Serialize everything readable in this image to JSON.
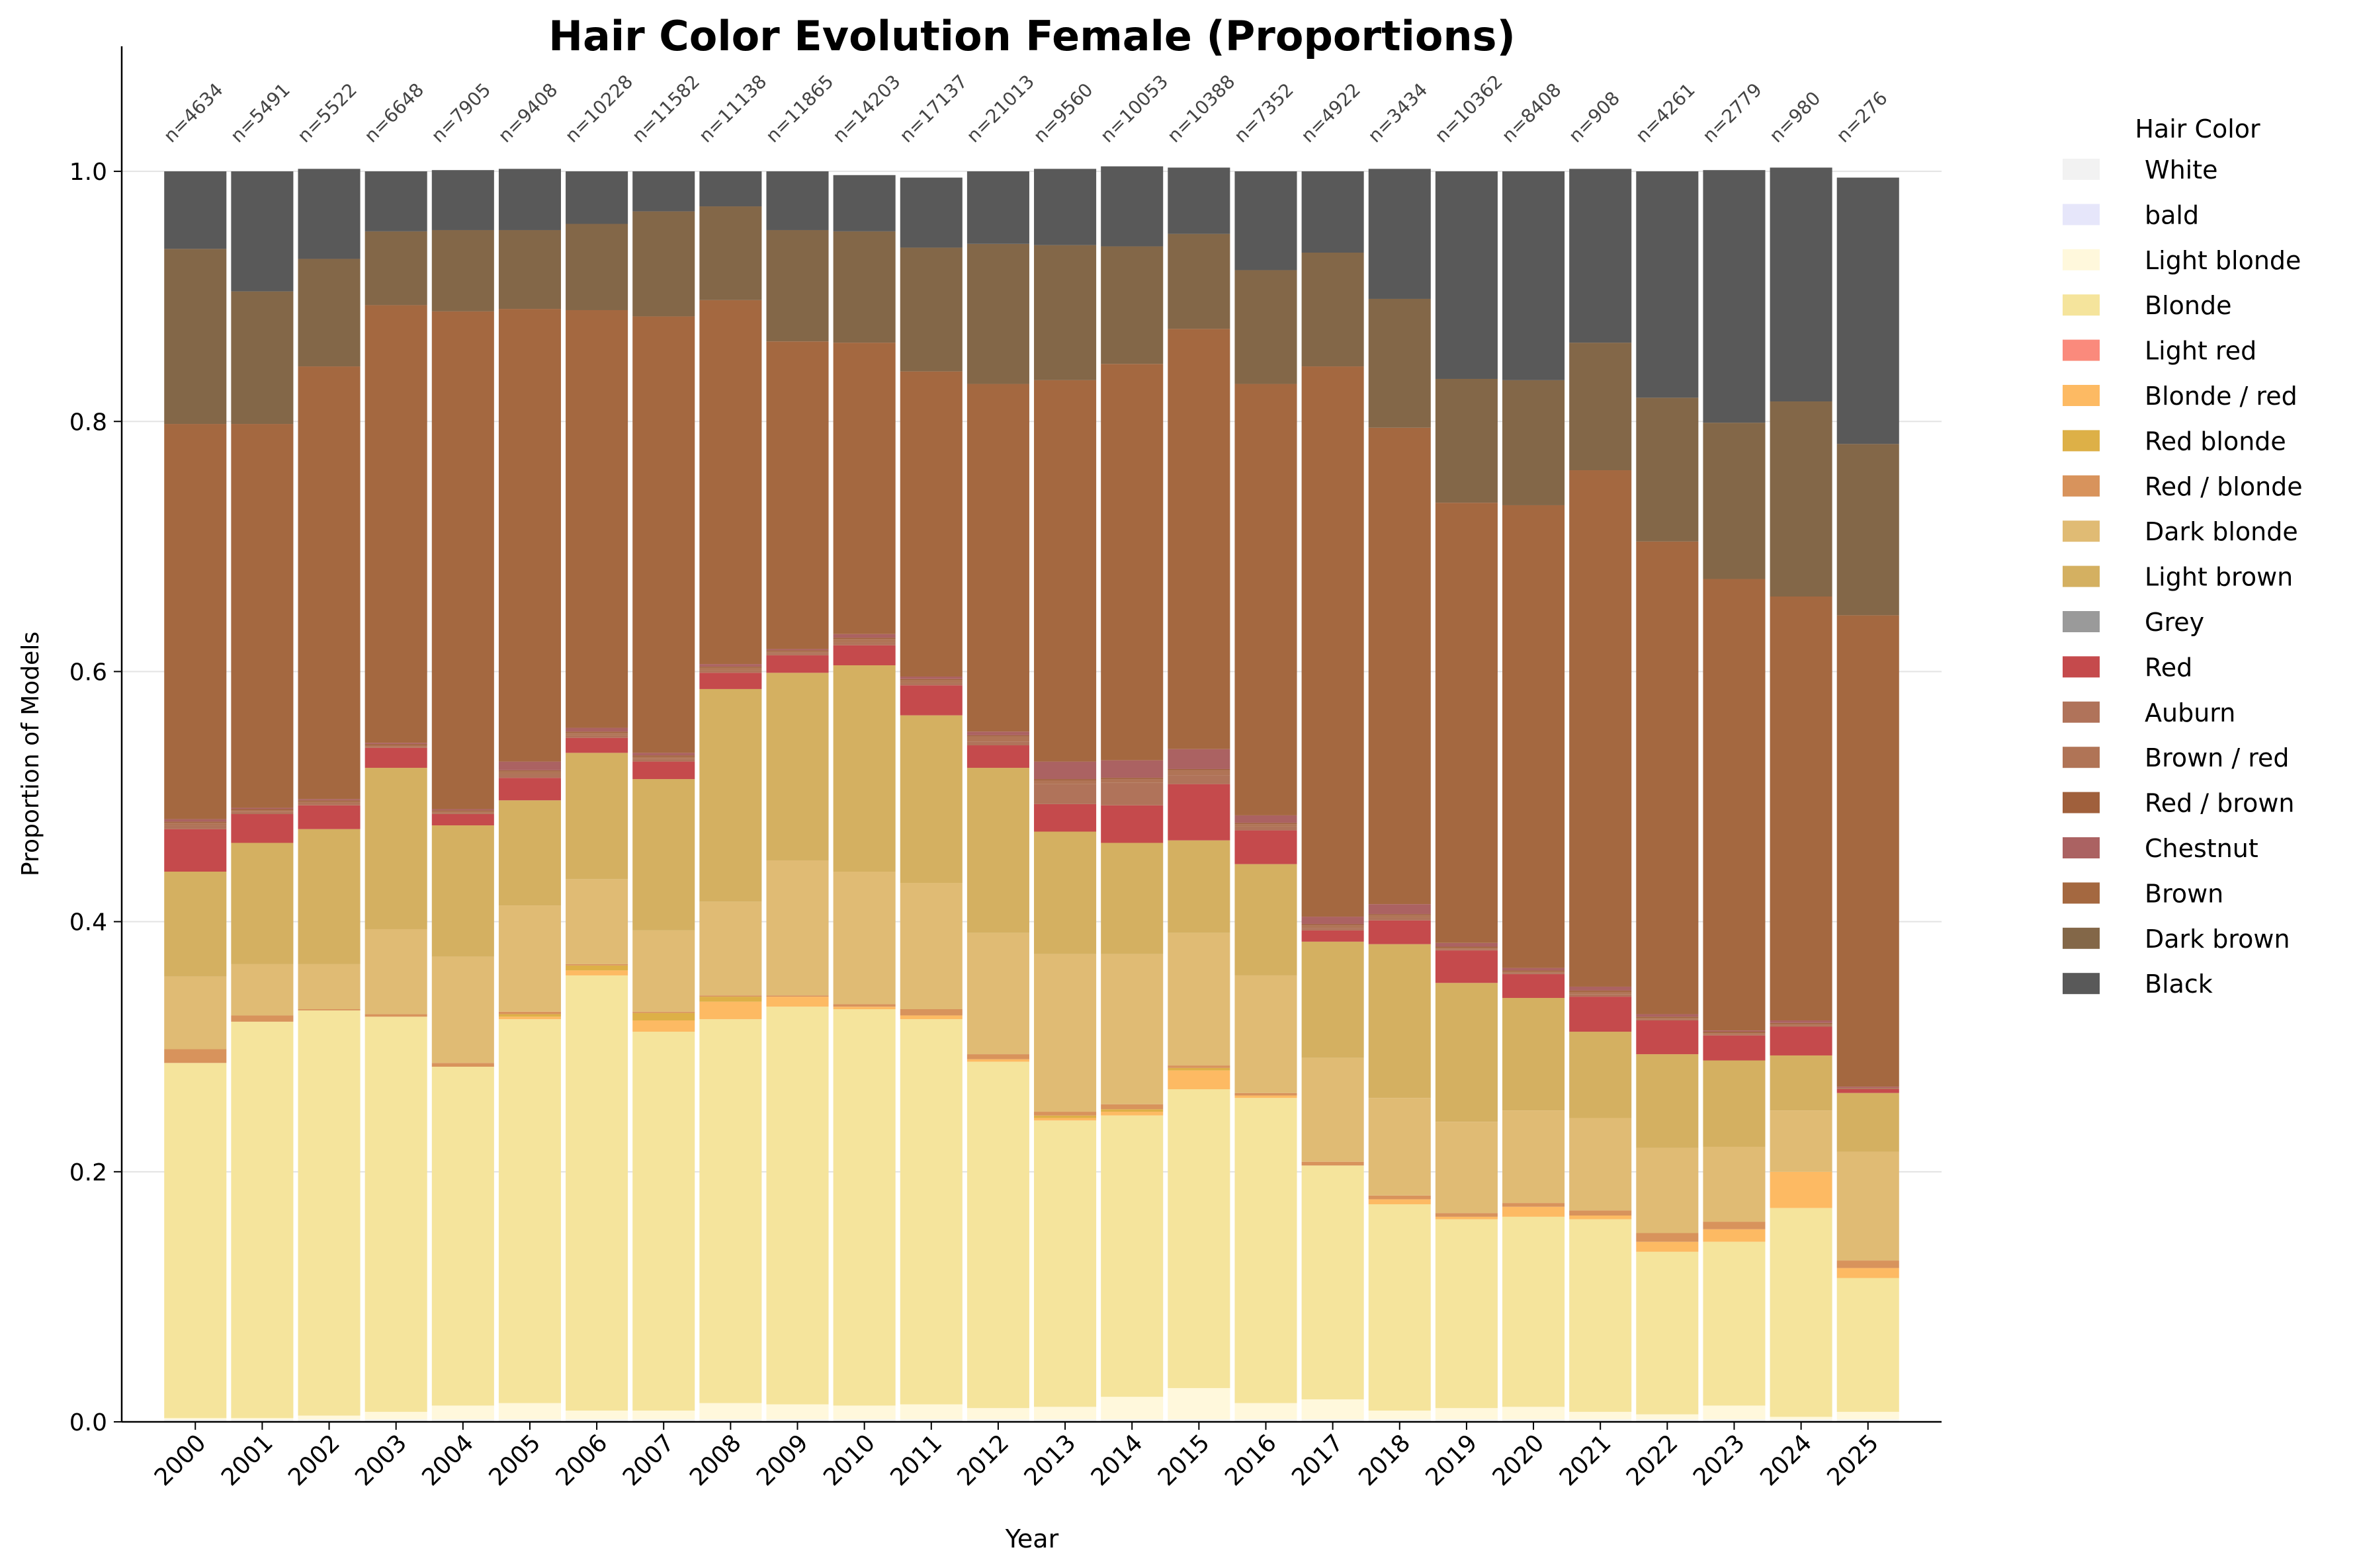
{
  "chart_data": {
    "type": "bar",
    "stacked": true,
    "title": "Hair Color Evolution Female (Proportions)",
    "xlabel": "Year",
    "ylabel": "Proportion of Models",
    "ylim": [
      0,
      1.1
    ],
    "yticks": [
      "0.0",
      "0.2",
      "0.4",
      "0.6",
      "0.8",
      "1.0"
    ],
    "grid": "horizontal",
    "legend_title": "Hair Color",
    "legend_position": "outside right",
    "categories": [
      "2000",
      "2001",
      "2002",
      "2003",
      "2004",
      "2005",
      "2006",
      "2007",
      "2008",
      "2009",
      "2010",
      "2011",
      "2012",
      "2013",
      "2014",
      "2015",
      "2016",
      "2017",
      "2018",
      "2019",
      "2020",
      "2021",
      "2022",
      "2023",
      "2024",
      "2025"
    ],
    "counts": [
      "n=4634",
      "n=5491",
      "n=5522",
      "n=6648",
      "n=7905",
      "n=9408",
      "n=10228",
      "n=11582",
      "n=11138",
      "n=11865",
      "n=14203",
      "n=17137",
      "n=21013",
      "n=9560",
      "n=10053",
      "n=10388",
      "n=7352",
      "n=4922",
      "n=3434",
      "n=10362",
      "n=8408",
      "n=908",
      "n=4261",
      "n=2779",
      "n=980",
      "n=276"
    ],
    "series": [
      {
        "name": "White",
        "color": "#f2f2f2",
        "values": [
          0.002,
          0.002,
          0.002,
          0.002,
          0.002,
          0.002,
          0.002,
          0.002,
          0.002,
          0.002,
          0.002,
          0.002,
          0.002,
          0.002,
          0.002,
          0.002,
          0.002,
          0.002,
          0.002,
          0.002,
          0.002,
          0.002,
          0.002,
          0.002,
          0.002,
          0.002
        ]
      },
      {
        "name": "bald",
        "color": "#e6e6fa",
        "values": [
          0,
          0,
          0,
          0,
          0,
          0,
          0,
          0,
          0,
          0,
          0,
          0,
          0,
          0,
          0,
          0,
          0,
          0,
          0,
          0,
          0,
          0,
          0,
          0,
          0,
          0
        ]
      },
      {
        "name": "Light blonde",
        "color": "#fff8dc",
        "values": [
          0.001,
          0.001,
          0.003,
          0.006,
          0.011,
          0.013,
          0.007,
          0.007,
          0.013,
          0.012,
          0.011,
          0.012,
          0.009,
          0.01,
          0.018,
          0.025,
          0.013,
          0.016,
          0.007,
          0.009,
          0.01,
          0.006,
          0.004,
          0.011,
          0.002,
          0.006
        ]
      },
      {
        "name": "Blonde",
        "color": "#f5e49c",
        "values": [
          0.284,
          0.317,
          0.324,
          0.316,
          0.271,
          0.307,
          0.348,
          0.303,
          0.307,
          0.318,
          0.317,
          0.308,
          0.277,
          0.229,
          0.225,
          0.239,
          0.244,
          0.187,
          0.165,
          0.151,
          0.152,
          0.154,
          0.13,
          0.131,
          0.167,
          0.107
        ]
      },
      {
        "name": "Light red",
        "color": "#fa8a7c",
        "values": [
          0,
          0,
          0,
          0,
          0,
          0,
          0,
          0,
          0,
          0,
          0,
          0,
          0,
          0,
          0,
          0,
          0,
          0,
          0,
          0,
          0,
          0,
          0,
          0,
          0,
          0
        ]
      },
      {
        "name": "Blonde / red",
        "color": "#fdba63",
        "values": [
          0,
          0,
          0,
          0,
          0,
          0.002,
          0.004,
          0.009,
          0.014,
          0.008,
          0.002,
          0.003,
          0.002,
          0.002,
          0.003,
          0.015,
          0.002,
          0,
          0.004,
          0.002,
          0.008,
          0.003,
          0.008,
          0.01,
          0.029,
          0.008
        ]
      },
      {
        "name": "Red blonde",
        "color": "#ddb047",
        "values": [
          0,
          0,
          0,
          0,
          0,
          0.002,
          0.004,
          0.006,
          0.004,
          0,
          0,
          0,
          0,
          0.002,
          0.002,
          0.002,
          0,
          0,
          0,
          0,
          0,
          0,
          0,
          0,
          0,
          0
        ]
      },
      {
        "name": "Red / blonde",
        "color": "#d8935c",
        "values": [
          0.011,
          0.005,
          0.001,
          0.002,
          0.003,
          0.002,
          0.001,
          0.001,
          0.001,
          0.001,
          0.002,
          0.005,
          0.004,
          0.003,
          0.004,
          0.002,
          0.002,
          0.003,
          0.003,
          0.003,
          0.003,
          0.004,
          0.007,
          0.006,
          0,
          0.006
        ]
      },
      {
        "name": "Dark blonde",
        "color": "#e0bb74",
        "values": [
          0.058,
          0.041,
          0.036,
          0.068,
          0.085,
          0.085,
          0.068,
          0.065,
          0.075,
          0.108,
          0.106,
          0.101,
          0.097,
          0.126,
          0.12,
          0.106,
          0.094,
          0.083,
          0.078,
          0.073,
          0.074,
          0.074,
          0.068,
          0.06,
          0.049,
          0.087
        ]
      },
      {
        "name": "Light brown",
        "color": "#d4b061",
        "values": [
          0.084,
          0.097,
          0.108,
          0.129,
          0.105,
          0.084,
          0.101,
          0.121,
          0.17,
          0.15,
          0.165,
          0.134,
          0.132,
          0.098,
          0.089,
          0.074,
          0.089,
          0.093,
          0.123,
          0.111,
          0.09,
          0.069,
          0.075,
          0.069,
          0.044,
          0.047
        ]
      },
      {
        "name": "Grey",
        "color": "#9a9a9a",
        "values": [
          0,
          0,
          0,
          0,
          0,
          0,
          0,
          0,
          0,
          0,
          0,
          0,
          0,
          0,
          0,
          0,
          0,
          0,
          0,
          0,
          0,
          0,
          0,
          0,
          0,
          0
        ]
      },
      {
        "name": "Red",
        "color": "#c54a4c",
        "values": [
          0.034,
          0.023,
          0.019,
          0.016,
          0.009,
          0.018,
          0.012,
          0.014,
          0.013,
          0.014,
          0.016,
          0.024,
          0.018,
          0.022,
          0.03,
          0.045,
          0.027,
          0.009,
          0.019,
          0.026,
          0.019,
          0.028,
          0.027,
          0.02,
          0.023,
          0.003
        ]
      },
      {
        "name": "Auburn",
        "color": "#b0735a",
        "values": [
          0.003,
          0.002,
          0.002,
          0.001,
          0.001,
          0.003,
          0.002,
          0.002,
          0.002,
          0.002,
          0.002,
          0.002,
          0.003,
          0.016,
          0.018,
          0.007,
          0.003,
          0.002,
          0.002,
          0.001,
          0.001,
          0.002,
          0.001,
          0.001,
          0.001,
          0.001
        ]
      },
      {
        "name": "Brown / red",
        "color": "#b07456",
        "values": [
          0.002,
          0.001,
          0.001,
          0.001,
          0.001,
          0.002,
          0.002,
          0.002,
          0.002,
          0.001,
          0.003,
          0.002,
          0.004,
          0.003,
          0.003,
          0.004,
          0.002,
          0.002,
          0.002,
          0.001,
          0.001,
          0.002,
          0.001,
          0.001,
          0.001,
          0
        ]
      },
      {
        "name": "Red / brown",
        "color": "#a0603c",
        "values": [
          0.001,
          0.001,
          0.001,
          0.001,
          0.001,
          0.001,
          0.001,
          0.001,
          0.001,
          0.001,
          0.001,
          0.001,
          0.001,
          0.001,
          0.001,
          0.001,
          0.001,
          0.001,
          0.001,
          0.001,
          0.001,
          0.001,
          0.001,
          0.001,
          0.001,
          0
        ]
      },
      {
        "name": "Chestnut",
        "color": "#ab6262",
        "values": [
          0.002,
          0.001,
          0.001,
          0.001,
          0.001,
          0.007,
          0.003,
          0.002,
          0.002,
          0.001,
          0.003,
          0.002,
          0.003,
          0.014,
          0.014,
          0.016,
          0.006,
          0.006,
          0.008,
          0.003,
          0.002,
          0.003,
          0.002,
          0.001,
          0.002,
          0.001
        ]
      },
      {
        "name": "Brown",
        "color": "#a46840",
        "values": [
          0.316,
          0.307,
          0.346,
          0.35,
          0.398,
          0.362,
          0.334,
          0.349,
          0.291,
          0.246,
          0.233,
          0.244,
          0.278,
          0.305,
          0.317,
          0.336,
          0.345,
          0.44,
          0.381,
          0.352,
          0.37,
          0.413,
          0.378,
          0.361,
          0.339,
          0.377
        ]
      },
      {
        "name": "Dark brown",
        "color": "#836748",
        "values": [
          0.14,
          0.106,
          0.086,
          0.059,
          0.065,
          0.063,
          0.069,
          0.084,
          0.075,
          0.089,
          0.089,
          0.099,
          0.112,
          0.108,
          0.094,
          0.076,
          0.091,
          0.091,
          0.103,
          0.099,
          0.1,
          0.102,
          0.115,
          0.125,
          0.156,
          0.137
        ]
      },
      {
        "name": "Black",
        "color": "#595959",
        "values": [
          0.062,
          0.096,
          0.072,
          0.048,
          0.048,
          0.049,
          0.042,
          0.032,
          0.028,
          0.047,
          0.045,
          0.056,
          0.058,
          0.061,
          0.064,
          0.053,
          0.079,
          0.065,
          0.104,
          0.166,
          0.167,
          0.139,
          0.181,
          0.202,
          0.187,
          0.213
        ]
      }
    ]
  }
}
